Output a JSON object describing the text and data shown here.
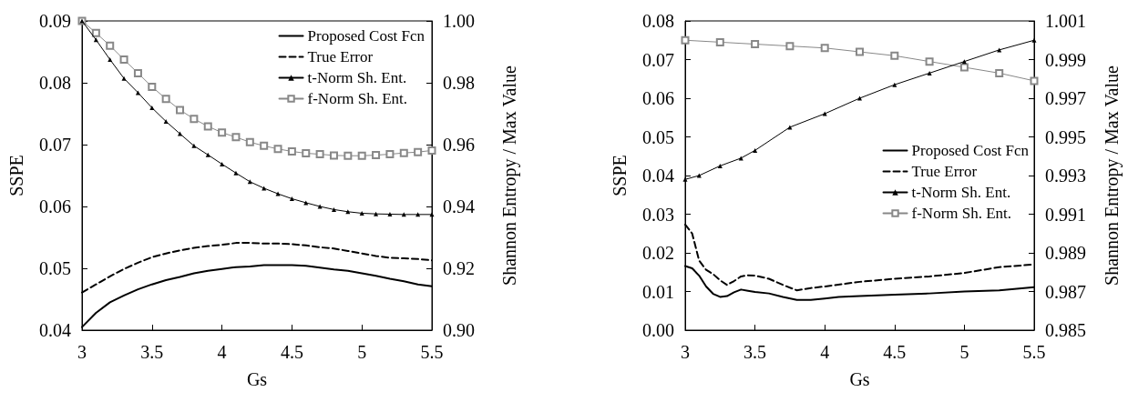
{
  "chart_data": [
    {
      "type": "line",
      "xlabel": "Gs",
      "ylabel": "SSPE",
      "y2label": "Shannon Entropy / Max Value",
      "xlim": [
        3,
        5.5
      ],
      "xticks": [
        3,
        3.5,
        4,
        4.5,
        5,
        5.5
      ],
      "ylim": [
        0.04,
        0.09
      ],
      "yticks": [
        0.04,
        0.05,
        0.06,
        0.07,
        0.08,
        0.09
      ],
      "y2lim": [
        0.9,
        1.0
      ],
      "y2ticks": [
        {
          "value": 0.9,
          "label": "0.90"
        },
        0.92,
        0.94,
        0.96,
        0.98,
        {
          "value": 1.0,
          "label": "1.00"
        }
      ],
      "grid": false,
      "legend": "top right",
      "series": [
        {
          "name": "Proposed Cost Fcn",
          "color": "#000000",
          "marker": "none",
          "line_style": "solid",
          "x": [
            3,
            3.1,
            3.2,
            3.3,
            3.4,
            3.5,
            3.6,
            3.7,
            3.8,
            3.9,
            4,
            4.1,
            4.2,
            4.3,
            4.4,
            4.5,
            4.6,
            4.7,
            4.8,
            4.9,
            5,
            5.1,
            5.2,
            5.3,
            5.4,
            5.5
          ],
          "values": [
            0.0405,
            0.0428,
            0.0445,
            0.0456,
            0.0466,
            0.0474,
            0.0481,
            0.0486,
            0.0492,
            0.0496,
            0.0499,
            0.0502,
            0.0503,
            0.0505,
            0.0505,
            0.0505,
            0.0504,
            0.0501,
            0.0498,
            0.0496,
            0.0492,
            0.0488,
            0.0483,
            0.0479,
            0.0474,
            0.0471
          ]
        },
        {
          "name": "True Error",
          "color": "#000000",
          "marker": "none",
          "line_style": "dashed",
          "x": [
            3,
            3.1,
            3.2,
            3.3,
            3.4,
            3.5,
            3.6,
            3.7,
            3.8,
            3.9,
            4,
            4.1,
            4.2,
            4.3,
            4.4,
            4.5,
            4.6,
            4.7,
            4.8,
            4.9,
            5,
            5.1,
            5.2,
            5.3,
            5.4,
            5.5
          ],
          "values": [
            0.0461,
            0.0474,
            0.0487,
            0.0499,
            0.0509,
            0.0518,
            0.0524,
            0.0529,
            0.0533,
            0.0536,
            0.0538,
            0.0541,
            0.0541,
            0.054,
            0.054,
            0.0539,
            0.0537,
            0.0534,
            0.0532,
            0.0528,
            0.0524,
            0.052,
            0.0517,
            0.0516,
            0.0515,
            0.0513
          ]
        },
        {
          "name": "t-Norm Sh. Ent.",
          "color": "#000000",
          "marker": "triangle",
          "line_style": "solid",
          "axis": "y2",
          "x": [
            3,
            3.1,
            3.2,
            3.3,
            3.4,
            3.5,
            3.6,
            3.7,
            3.8,
            3.9,
            4,
            4.1,
            4.2,
            4.3,
            4.4,
            4.5,
            4.6,
            4.7,
            4.8,
            4.9,
            5,
            5.1,
            5.2,
            5.3,
            5.4,
            5.5
          ],
          "values": [
            1.0,
            0.9939,
            0.9875,
            0.9814,
            0.9768,
            0.9719,
            0.9675,
            0.9635,
            0.9596,
            0.9567,
            0.9537,
            0.9508,
            0.948,
            0.9459,
            0.9441,
            0.9425,
            0.9412,
            0.94,
            0.939,
            0.9383,
            0.9378,
            0.9376,
            0.9375,
            0.9374,
            0.9374,
            0.9374
          ]
        },
        {
          "name": "f-Norm Sh. Ent.",
          "color": "#888888",
          "marker": "square",
          "line_style": "solid",
          "axis": "y2",
          "x": [
            3,
            3.1,
            3.2,
            3.3,
            3.4,
            3.5,
            3.6,
            3.7,
            3.8,
            3.9,
            4,
            4.1,
            4.2,
            4.3,
            4.4,
            4.5,
            4.6,
            4.7,
            4.8,
            4.9,
            5,
            5.1,
            5.2,
            5.3,
            5.4,
            5.5
          ],
          "values": [
            1.0,
            0.9961,
            0.992,
            0.9875,
            0.9831,
            0.9787,
            0.9748,
            0.9712,
            0.9683,
            0.9659,
            0.9639,
            0.9624,
            0.9608,
            0.9596,
            0.9586,
            0.9578,
            0.9572,
            0.9569,
            0.9565,
            0.9564,
            0.9564,
            0.9566,
            0.9569,
            0.9573,
            0.9576,
            0.9581
          ]
        }
      ]
    },
    {
      "type": "line",
      "xlabel": "Gs",
      "ylabel": "SSPE",
      "y2label": "Shannon Entropy / Max Value",
      "xlim": [
        3,
        5.5
      ],
      "xticks": [
        3,
        3.5,
        4,
        4.5,
        5,
        5.5
      ],
      "ylim": [
        0,
        0.08
      ],
      "yticks": [
        {
          "value": 0,
          "label": "0.00"
        },
        0.01,
        0.02,
        0.03,
        0.04,
        0.05,
        0.06,
        0.07,
        0.08
      ],
      "y2lim": [
        0.985,
        1.001
      ],
      "y2ticks": [
        0.985,
        0.987,
        0.989,
        0.991,
        0.993,
        0.995,
        0.997,
        0.999,
        1.001
      ],
      "grid": false,
      "legend": "right",
      "series": [
        {
          "name": "Proposed Cost Fcn",
          "color": "#000000",
          "marker": "none",
          "line_style": "solid",
          "x": [
            3,
            3.05,
            3.1,
            3.15,
            3.2,
            3.25,
            3.3,
            3.35,
            3.4,
            3.45,
            3.5,
            3.6,
            3.7,
            3.8,
            3.9,
            4,
            4.1,
            4.25,
            4.5,
            4.75,
            5,
            5.25,
            5.5
          ],
          "values": [
            0.0166,
            0.016,
            0.0141,
            0.0113,
            0.0094,
            0.0086,
            0.0088,
            0.0098,
            0.0105,
            0.0102,
            0.0099,
            0.0095,
            0.0086,
            0.0078,
            0.0078,
            0.0082,
            0.0086,
            0.0088,
            0.0092,
            0.0095,
            0.01,
            0.0103,
            0.0111
          ]
        },
        {
          "name": "True Error",
          "color": "#000000",
          "marker": "none",
          "line_style": "dashed",
          "x": [
            3,
            3.05,
            3.1,
            3.15,
            3.2,
            3.25,
            3.3,
            3.35,
            3.4,
            3.45,
            3.5,
            3.6,
            3.7,
            3.8,
            3.9,
            4,
            4.25,
            4.5,
            4.75,
            5,
            5.25,
            5.5
          ],
          "values": [
            0.0273,
            0.025,
            0.018,
            0.0156,
            0.0145,
            0.0129,
            0.0117,
            0.0127,
            0.0139,
            0.0142,
            0.0141,
            0.0133,
            0.0117,
            0.0103,
            0.0109,
            0.0113,
            0.0125,
            0.0133,
            0.0139,
            0.0148,
            0.0163,
            0.017
          ]
        },
        {
          "name": "t-Norm Sh. Ent.",
          "color": "#000000",
          "marker": "triangle",
          "line_style": "solid",
          "axis": "y2",
          "x": [
            3,
            3.1,
            3.25,
            3.4,
            3.5,
            3.75,
            4,
            4.25,
            4.5,
            4.75,
            5,
            5.25,
            5.5
          ],
          "values": [
            0.9928,
            0.993,
            0.9935,
            0.9939,
            0.9943,
            0.9955,
            0.9962,
            0.997,
            0.9977,
            0.9983,
            0.9989,
            0.9995,
            1.0
          ]
        },
        {
          "name": "f-Norm Sh. Ent.",
          "color": "#888888",
          "marker": "square",
          "line_style": "solid",
          "axis": "y2",
          "x": [
            3,
            3.25,
            3.5,
            3.75,
            4,
            4.25,
            4.5,
            4.75,
            5,
            5.25,
            5.5
          ],
          "values": [
            1.0,
            0.9999,
            0.9998,
            0.9997,
            0.9996,
            0.9994,
            0.9992,
            0.9989,
            0.9986,
            0.9983,
            0.9979
          ]
        }
      ]
    }
  ]
}
